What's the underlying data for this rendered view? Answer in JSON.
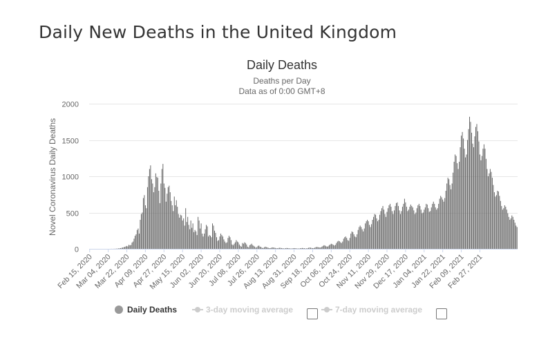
{
  "page": {
    "title": "Daily New Deaths in the United Kingdom"
  },
  "colors": {
    "bar": "#666666",
    "grid": "#e6e6e6",
    "axis": "#ccd6eb",
    "text": "#333333",
    "muted": "#666666",
    "legend_active": "#333333",
    "legend_inactive": "#cccccc",
    "legend_marker": "#999999"
  },
  "legend": {
    "items": [
      {
        "label": "Daily Deaths",
        "active": true
      },
      {
        "label": "3-day moving average",
        "active": false
      },
      {
        "label": "7-day moving average",
        "active": false
      }
    ]
  },
  "chart_data": {
    "type": "bar",
    "title": "Daily Deaths",
    "subtitle": "Deaths per Day",
    "subtitle2": "Data as of 0:00 GMT+8",
    "xlabel": "",
    "ylabel": "Novel Coronavirus Daily Deaths",
    "ylim": [
      0,
      2000
    ],
    "yticks": [
      0,
      500,
      1000,
      1500,
      2000
    ],
    "grid": true,
    "legend_position": "bottom",
    "x_tick_labels": [
      "Feb 15, 2020",
      "Mar 04, 2020",
      "Mar 22, 2020",
      "Apr 09, 2020",
      "Apr 27, 2020",
      "May 15, 2020",
      "Jun 02, 2020",
      "Jun 20, 2020",
      "Jul 08, 2020",
      "Jul 26, 2020",
      "Aug 13, 2020",
      "Aug 31, 2020",
      "Sep 18, 2020",
      "Oct 06, 2020",
      "Oct 24, 2020",
      "Nov 11, 2020",
      "Nov 29, 2020",
      "Dec 17, 2020",
      "Jan 04, 2021",
      "Jan 22, 2021",
      "Feb 09, 2021",
      "Feb 27, 2021"
    ],
    "series": [
      {
        "name": "Daily Deaths",
        "start_date": "Feb 15, 2020",
        "values": [
          0,
          0,
          0,
          0,
          0,
          0,
          0,
          0,
          0,
          0,
          0,
          0,
          0,
          0,
          0,
          0,
          0,
          0,
          0,
          0,
          0,
          1,
          0,
          1,
          1,
          2,
          3,
          4,
          6,
          8,
          10,
          14,
          18,
          22,
          27,
          33,
          40,
          33,
          56,
          48,
          54,
          87,
          100,
          140,
          180,
          200,
          260,
          280,
          210,
          400,
          480,
          500,
          700,
          740,
          600,
          560,
          850,
          1000,
          1100,
          1150,
          960,
          900,
          780,
          850,
          1040,
          990,
          980,
          800,
          630,
          900,
          1100,
          1170,
          900,
          840,
          650,
          760,
          850,
          870,
          780,
          660,
          600,
          520,
          720,
          600,
          670,
          580,
          480,
          430,
          470,
          460,
          390,
          420,
          320,
          560,
          370,
          440,
          330,
          270,
          390,
          290,
          350,
          230,
          260,
          240,
          190,
          440,
          390,
          280,
          350,
          210,
          170,
          210,
          270,
          330,
          310,
          170,
          190,
          180,
          160,
          350,
          320,
          250,
          220,
          160,
          110,
          120,
          170,
          210,
          190,
          170,
          130,
          100,
          80,
          90,
          150,
          180,
          160,
          120,
          60,
          50,
          70,
          90,
          120,
          100,
          90,
          60,
          40,
          30,
          80,
          70,
          90,
          80,
          60,
          30,
          20,
          50,
          60,
          70,
          50,
          40,
          30,
          15,
          25,
          40,
          45,
          30,
          25,
          15,
          10,
          20,
          30,
          25,
          20,
          15,
          10,
          10,
          15,
          20,
          18,
          15,
          12,
          8,
          8,
          12,
          15,
          13,
          10,
          8,
          6,
          6,
          10,
          12,
          10,
          8,
          6,
          5,
          5,
          8,
          10,
          9,
          7,
          5,
          5,
          5,
          8,
          10,
          12,
          10,
          8,
          6,
          6,
          10,
          14,
          18,
          16,
          12,
          10,
          10,
          16,
          22,
          26,
          24,
          20,
          18,
          20,
          30,
          40,
          50,
          45,
          35,
          30,
          35,
          50,
          60,
          70,
          65,
          55,
          45,
          55,
          80,
          100,
          110,
          105,
          90,
          80,
          100,
          140,
          160,
          170,
          150,
          120,
          110,
          150,
          210,
          240,
          230,
          200,
          170,
          160,
          200,
          260,
          300,
          320,
          300,
          270,
          240,
          280,
          350,
          380,
          400,
          380,
          330,
          300,
          340,
          400,
          440,
          480,
          470,
          420,
          380,
          400,
          470,
          520,
          560,
          590,
          540,
          480,
          440,
          510,
          560,
          600,
          620,
          580,
          520,
          480,
          530,
          590,
          630,
          640,
          590,
          530,
          480,
          520,
          580,
          620,
          690,
          640,
          580,
          520,
          540,
          580,
          610,
          590,
          570,
          530,
          480,
          500,
          560,
          600,
          620,
          590,
          540,
          490,
          500,
          540,
          570,
          620,
          610,
          560,
          510,
          520,
          570,
          620,
          650,
          620,
          570,
          540,
          560,
          620,
          690,
          730,
          710,
          680,
          650,
          700,
          800,
          900,
          980,
          960,
          880,
          820,
          900,
          1050,
          1200,
          1300,
          1280,
          1180,
          1100,
          1200,
          1400,
          1560,
          1610,
          1520,
          1380,
          1260,
          1300,
          1500,
          1650,
          1820,
          1750,
          1600,
          1450,
          1400,
          1550,
          1680,
          1720,
          1620,
          1480,
          1300,
          1220,
          1280,
          1380,
          1440,
          1380,
          1240,
          1100,
          1000,
          1040,
          1100,
          1060,
          980,
          880,
          780,
          720,
          740,
          800,
          790,
          730,
          660,
          590,
          540,
          560,
          600,
          580,
          540,
          490,
          440,
          400,
          420,
          460,
          440,
          400,
          360,
          320,
          300
        ]
      }
    ]
  }
}
